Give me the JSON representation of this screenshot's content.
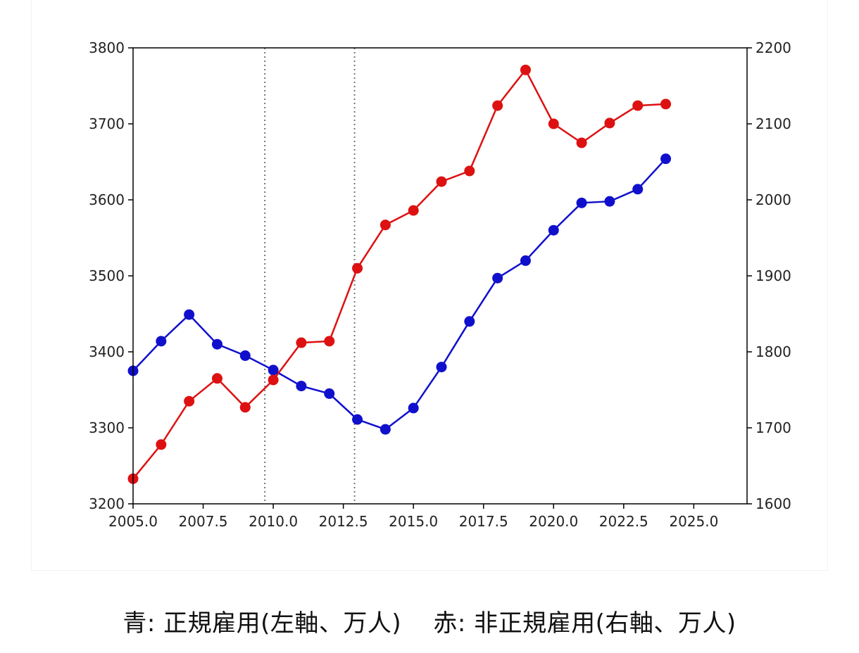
{
  "caption": {
    "blue": "青: 正規雇用(左軸、万人)",
    "red": "赤: 非正規雇用(右軸、万人)"
  },
  "colors": {
    "regular": "#1010cc",
    "nonregular": "#dd1111",
    "axis": "#000000",
    "vline": "#777777"
  },
  "chart_data": {
    "type": "line",
    "grid": false,
    "legend": "none",
    "xlim": [
      2005.0,
      2026.9
    ],
    "x_ticks": [
      {
        "value": 2005.0,
        "label": "2005.0"
      },
      {
        "value": 2007.5,
        "label": "2007.5"
      },
      {
        "value": 2010.0,
        "label": "2010.0"
      },
      {
        "value": 2012.5,
        "label": "2012.5"
      },
      {
        "value": 2015.0,
        "label": "2015.0"
      },
      {
        "value": 2017.5,
        "label": "2017.5"
      },
      {
        "value": 2020.0,
        "label": "2020.0"
      },
      {
        "value": 2022.5,
        "label": "2022.5"
      },
      {
        "value": 2025.0,
        "label": "2025.0"
      }
    ],
    "ylim_left": [
      3200,
      3800
    ],
    "y_ticks_left": [
      "3200",
      "3300",
      "3400",
      "3500",
      "3600",
      "3700",
      "3800"
    ],
    "ylim_right": [
      1600,
      2200
    ],
    "y_ticks_right": [
      "1600",
      "1700",
      "1800",
      "1900",
      "2000",
      "2100",
      "2200"
    ],
    "vertical_lines": [
      2009.7,
      2012.9
    ],
    "x": [
      2005,
      2006,
      2007,
      2008,
      2009,
      2010,
      2011,
      2012,
      2013,
      2014,
      2015,
      2016,
      2017,
      2018,
      2019,
      2020,
      2021,
      2022,
      2023,
      2024
    ],
    "series": [
      {
        "key": "regular",
        "axis": "left",
        "color": "#1010cc",
        "values": [
          3375,
          3414,
          3449,
          3410,
          3395,
          3376,
          3355,
          3345,
          3311,
          3298,
          3326,
          3380,
          3440,
          3497,
          3520,
          3560,
          3596,
          3598,
          3614,
          3654
        ]
      },
      {
        "key": "nonregular",
        "axis": "right",
        "color": "#dd1111",
        "values": [
          1633,
          1678,
          1735,
          1765,
          1727,
          1763,
          1812,
          1814,
          1910,
          1967,
          1986,
          2024,
          2038,
          2124,
          2171,
          2100,
          2075,
          2101,
          2124,
          2126
        ]
      }
    ]
  }
}
